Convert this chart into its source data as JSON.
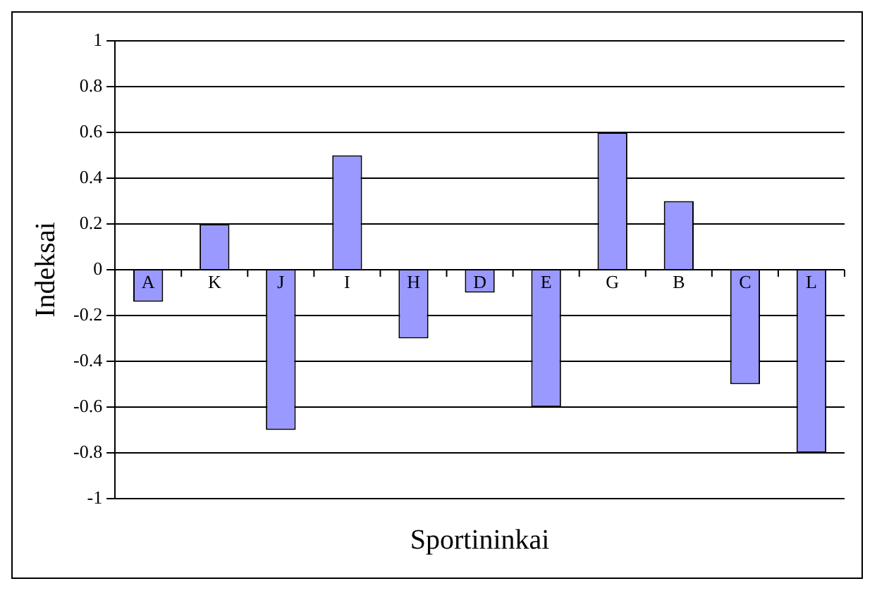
{
  "chart_data": {
    "type": "bar",
    "xlabel": "Sportininkai",
    "ylabel": "Indeksai",
    "categories": [
      "A",
      "K",
      "J",
      "I",
      "H",
      "D",
      "E",
      "G",
      "B",
      "C",
      "L"
    ],
    "values": [
      -0.14,
      0.2,
      -0.7,
      0.5,
      -0.3,
      -0.1,
      -0.6,
      0.6,
      0.3,
      -0.5,
      -0.8
    ],
    "color": "#9999ff",
    "ylim": [
      -1,
      1
    ],
    "yticks": [
      -1,
      -0.8,
      -0.6,
      -0.4,
      -0.2,
      0,
      0.2,
      0.4,
      0.6,
      0.8,
      1
    ],
    "grid": "y",
    "legend": false
  }
}
